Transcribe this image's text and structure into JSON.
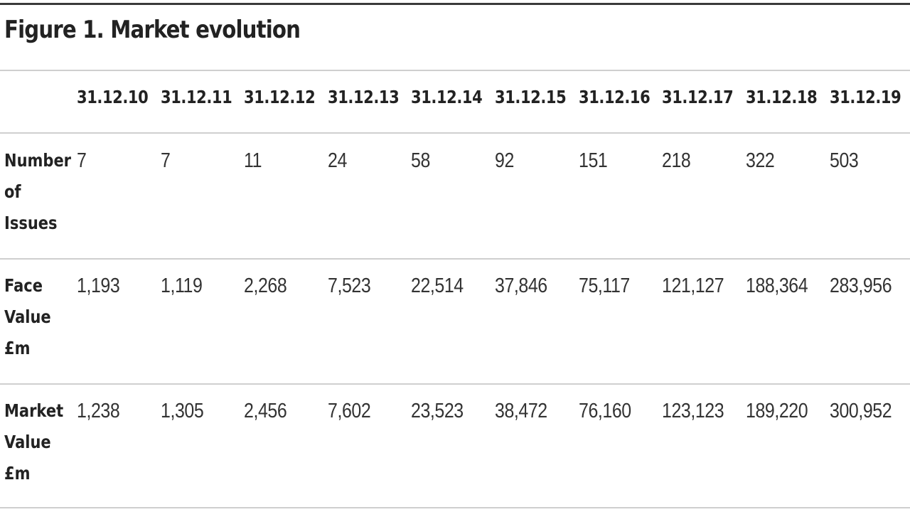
{
  "chart_data": {
    "type": "table",
    "title": "Figure 1. Market evolution",
    "columns": [
      "31.12.10",
      "31.12.11",
      "31.12.12",
      "31.12.13",
      "31.12.14",
      "31.12.15",
      "31.12.16",
      "31.12.17",
      "31.12.18",
      "31.12.19"
    ],
    "rows": [
      {
        "label": "Number\nof\nIssues",
        "values": [
          "7",
          "7",
          "11",
          "24",
          "58",
          "92",
          "151",
          "218",
          "322",
          "503"
        ]
      },
      {
        "label": "Face\nValue\n£m",
        "values": [
          "1,193",
          "1,119",
          "2,268",
          "7,523",
          "22,514",
          "37,846",
          "75,117",
          "121,127",
          "188,364",
          "283,956"
        ]
      },
      {
        "label": "Market\nValue\n£m",
        "values": [
          "1,238",
          "1,305",
          "2,456",
          "7,602",
          "23,523",
          "38,472",
          "76,160",
          "123,123",
          "189,220",
          "300,952"
        ]
      }
    ]
  }
}
